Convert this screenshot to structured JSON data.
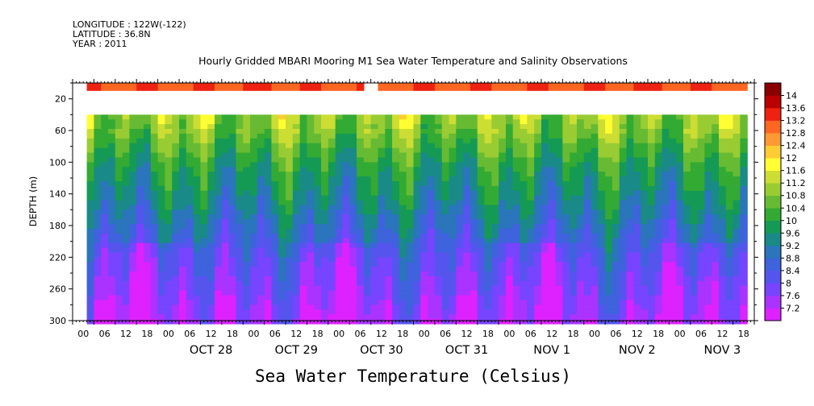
{
  "header": {
    "longitude": "LONGITUDE : 122W(-122)",
    "latitude": "LATITUDE : 36.8N",
    "year": "YEAR : 2011"
  },
  "chart_data": {
    "type": "heatmap",
    "title": "Hourly Gridded MBARI Mooring M1 Sea Water Temperature and Salinity Observations",
    "xlabel": "",
    "ylabel": "DEPTH (m)",
    "colorbar_label": "Sea Water Temperature (Celsius)",
    "y_reversed": true,
    "ylim": [
      300,
      0
    ],
    "yticks": [
      20,
      60,
      100,
      140,
      180,
      220,
      260,
      300
    ],
    "x_hour_ticks": [
      "00",
      "06",
      "12",
      "18",
      "00",
      "06",
      "12",
      "18",
      "00",
      "06",
      "12",
      "18",
      "00",
      "06",
      "12",
      "18",
      "00",
      "06",
      "12",
      "18",
      "00",
      "06",
      "12",
      "18",
      "00",
      "06",
      "12",
      "18",
      "00",
      "06",
      "12",
      "18"
    ],
    "x_date_labels": [
      "OCT 28",
      "OCT 29",
      "OCT 30",
      "OCT 31",
      "NOV  1",
      "NOV  2",
      "NOV  3"
    ],
    "data_start_hour": 4,
    "data_end_hour": 190,
    "near_surface_gap_hours": [
      [
        82,
        86
      ]
    ],
    "colorbar_levels": [
      7.2,
      7.6,
      8,
      8.4,
      8.8,
      9.2,
      9.6,
      10,
      10.4,
      10.8,
      11.2,
      11.6,
      12,
      12.4,
      12.8,
      13.2,
      13.6,
      14
    ],
    "colorbar_colors": [
      "#dd22ff",
      "#aa33ff",
      "#7744ff",
      "#5555ee",
      "#3f62dd",
      "#2a75bb",
      "#1a8a88",
      "#159a55",
      "#33aa33",
      "#66bb33",
      "#99cc33",
      "#ccdd33",
      "#ffff33",
      "#ffcc33",
      "#ff9933",
      "#ff6622",
      "#ee2211",
      "#bb0000",
      "#880000"
    ],
    "gridded_depths_m": [
      10,
      40,
      60,
      80,
      100,
      120,
      140,
      160,
      180,
      200,
      220,
      240,
      260,
      280,
      300
    ],
    "temperature_profile_typical_c": [
      13.0,
      11.0,
      10.8,
      10.4,
      10.0,
      9.7,
      9.5,
      9.2,
      8.9,
      8.6,
      8.3,
      8.1,
      7.9,
      7.7,
      7.5
    ],
    "near_surface_temperature_c": 13.1,
    "upper_column_temperature_c": [
      11.2,
      10.5
    ],
    "deep_temperature_c": [
      7.4,
      8.2
    ]
  }
}
